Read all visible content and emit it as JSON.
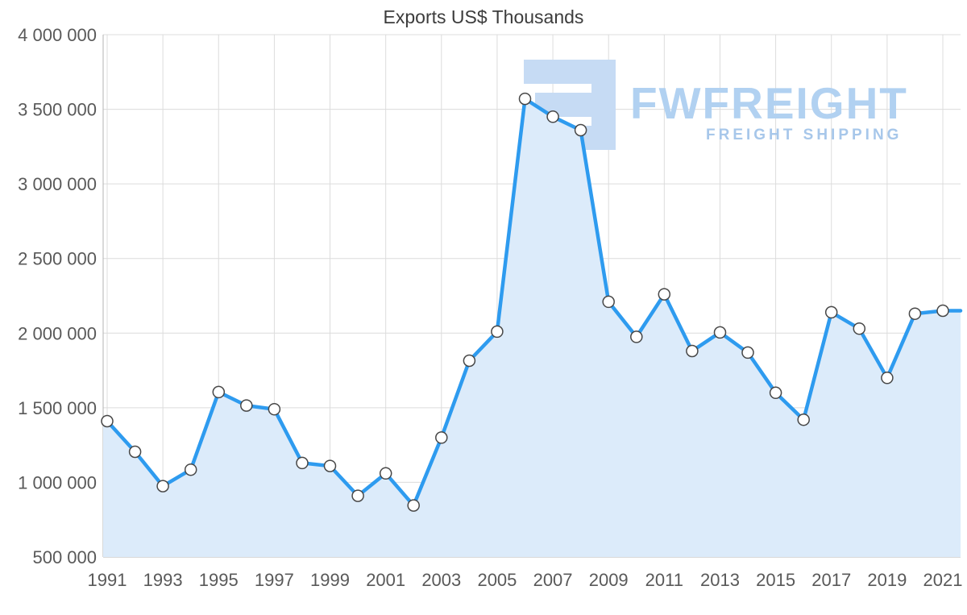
{
  "watermark": {
    "brand": "FWFREIGHT",
    "tagline": "FREIGHT SHIPPING",
    "logo_color": "#c6dbf4",
    "brand_color": "#b1d1f1",
    "tagline_color": "#a7c7ea"
  },
  "colors": {
    "line": "#2e9bef",
    "fill": "#dcebfa",
    "marker_fill": "#ffffff",
    "marker_stroke": "#474747",
    "grid": "#dcdcdc",
    "axis": "#b3b3b3",
    "tick_text": "#595959",
    "title_text": "#3c3c3c"
  },
  "chart_data": {
    "type": "area",
    "title": "Exports US$ Thousands",
    "xlabel": "",
    "ylabel": "",
    "categories": [
      1991,
      1992,
      1993,
      1994,
      1995,
      1996,
      1997,
      1998,
      1999,
      2000,
      2001,
      2002,
      2003,
      2004,
      2005,
      2006,
      2007,
      2008,
      2009,
      2010,
      2011,
      2012,
      2013,
      2014,
      2015,
      2016,
      2017,
      2018,
      2019,
      2020,
      2021
    ],
    "series": [
      {
        "name": "Exports US$ Thousands",
        "values": [
          1410000,
          1205000,
          975000,
          1085000,
          1605000,
          1515000,
          1490000,
          1130000,
          1110000,
          910000,
          1060000,
          845000,
          1300000,
          1815000,
          2010000,
          3570000,
          3450000,
          3360000,
          2210000,
          1975000,
          2260000,
          1880000,
          2005000,
          1870000,
          1600000,
          1420000,
          2140000,
          2030000,
          1700000,
          2130000,
          2150000
        ]
      }
    ],
    "ylim": [
      500000,
      4000000
    ],
    "y_ticks": [
      500000,
      1000000,
      1500000,
      2000000,
      2500000,
      3000000,
      3500000,
      4000000
    ],
    "y_tick_labels": [
      "500 000",
      "1 000 000",
      "1 500 000",
      "2 000 000",
      "2 500 000",
      "3 000 000",
      "3 500 000",
      "4 000 000"
    ],
    "x_tick_labels": [
      "1991",
      "1993",
      "1995",
      "1997",
      "1999",
      "2001",
      "2003",
      "2005",
      "2007",
      "2009",
      "2011",
      "2013",
      "2015",
      "2017",
      "2019",
      "2021"
    ],
    "grid": true,
    "legend": "none",
    "marker": "circle"
  }
}
